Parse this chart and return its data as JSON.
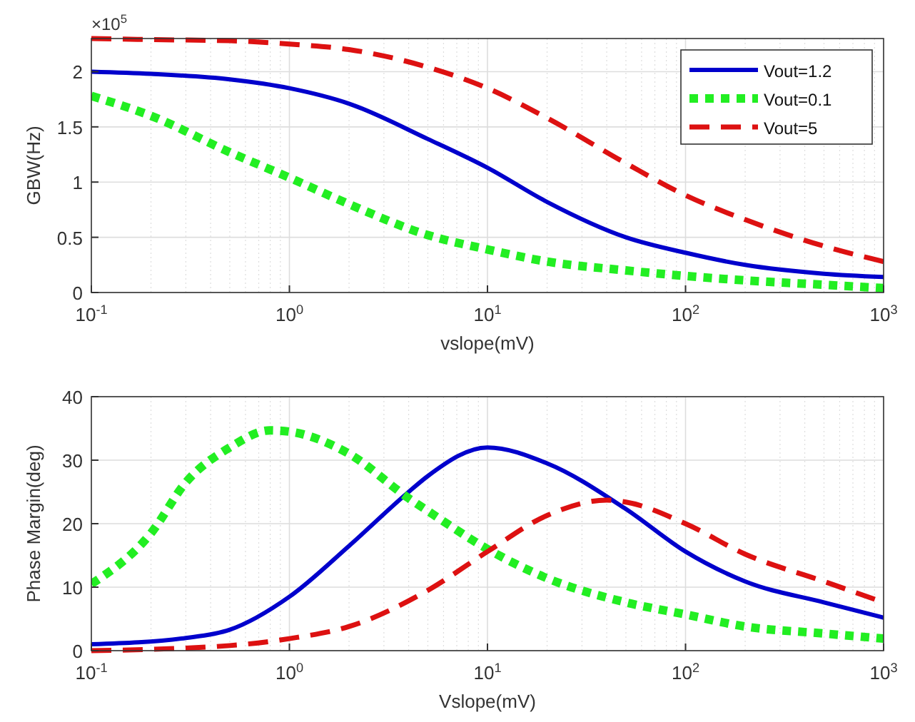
{
  "chart_data": [
    {
      "type": "line",
      "xlabel": "vslope(mV)",
      "ylabel": "GBW(Hz)",
      "log": "x",
      "grid": true,
      "legend": "top right",
      "annotations": [
        "×10$^{5}$"
      ],
      "xlim": [
        0.1,
        1000
      ],
      "xticks": [
        {
          "value": 0.1,
          "label": "10$^{-1}$"
        },
        {
          "value": 1,
          "label": "10$^{0}$"
        },
        {
          "value": 10,
          "label": "10$^{1}$"
        },
        {
          "value": 100,
          "label": "10$^{2}$"
        },
        {
          "value": 1000,
          "label": "10$^{3}$"
        }
      ],
      "ylim": [
        0,
        2.3
      ],
      "yticks": [
        0,
        0.5,
        1,
        1.5,
        2
      ],
      "x": [
        0.1,
        0.2,
        0.5,
        1,
        2,
        5,
        10,
        20,
        50,
        100,
        200,
        500,
        1000
      ],
      "series": [
        {
          "name": "Vout=1.2",
          "color": "#0000cc",
          "line_style": "solid",
          "values": [
            2.0,
            1.98,
            1.93,
            1.85,
            1.71,
            1.39,
            1.13,
            0.82,
            0.5,
            0.36,
            0.25,
            0.17,
            0.14
          ]
        },
        {
          "name": "Vout=0.1",
          "color": "#22ee22",
          "line_style": "dotted",
          "values": [
            1.78,
            1.6,
            1.27,
            1.04,
            0.8,
            0.52,
            0.39,
            0.28,
            0.2,
            0.15,
            0.11,
            0.07,
            0.04
          ]
        },
        {
          "name": "Vout=5",
          "color": "#dd1111",
          "line_style": "dashed",
          "values": [
            2.3,
            2.29,
            2.28,
            2.25,
            2.2,
            2.04,
            1.85,
            1.58,
            1.17,
            0.88,
            0.66,
            0.42,
            0.28
          ]
        }
      ]
    },
    {
      "type": "line",
      "xlabel": "Vslope(mV)",
      "ylabel": "Phase Margin(deg)",
      "log": "x",
      "grid": true,
      "xlim": [
        0.1,
        1000
      ],
      "xticks": [
        {
          "value": 0.1,
          "label": "10$^{-1}$"
        },
        {
          "value": 1,
          "label": "10$^{0}$"
        },
        {
          "value": 10,
          "label": "10$^{1}$"
        },
        {
          "value": 100,
          "label": "10$^{2}$"
        },
        {
          "value": 1000,
          "label": "10$^{3}$"
        }
      ],
      "ylim": [
        0,
        40
      ],
      "yticks": [
        0,
        10,
        20,
        30,
        40
      ],
      "series": [
        {
          "color": "#0000cc",
          "line_style": "solid",
          "x": [
            0.1,
            0.3,
            0.5,
            1,
            2,
            4,
            5,
            10,
            20,
            50,
            100,
            200,
            500,
            1000
          ],
          "values": [
            1,
            2,
            3.3,
            8.5,
            16.5,
            25,
            27.5,
            32,
            29.5,
            22.3,
            15.6,
            10.9,
            7.6,
            5.2
          ]
        },
        {
          "color": "#22ee22",
          "line_style": "dotted",
          "x": [
            0.1,
            0.2,
            0.3,
            0.5,
            0.8,
            1,
            2,
            4,
            5,
            10,
            20,
            50,
            100,
            200,
            500,
            1000
          ],
          "values": [
            10.5,
            18.5,
            26.5,
            32,
            34.7,
            34.5,
            31,
            24,
            22,
            16,
            11.4,
            7.6,
            5.7,
            3.8,
            2.7,
            1.9
          ]
        },
        {
          "color": "#dd1111",
          "line_style": "dashed",
          "x": [
            0.1,
            0.5,
            1,
            2,
            5,
            10,
            20,
            40,
            50,
            100,
            200,
            500,
            1000
          ],
          "values": [
            0,
            0.8,
            1.9,
            3.8,
            9.5,
            15.6,
            21.3,
            23.7,
            23.4,
            20,
            15.2,
            10.9,
            7.6
          ]
        }
      ]
    }
  ]
}
